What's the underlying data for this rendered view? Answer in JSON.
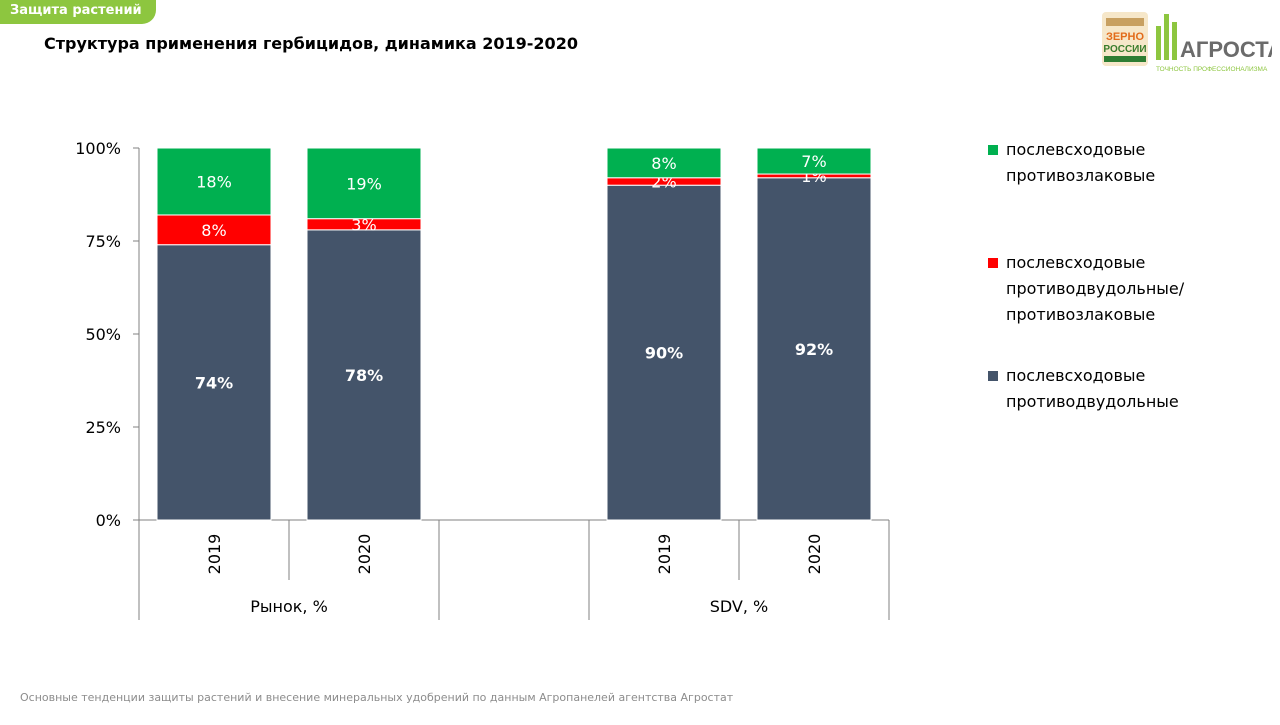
{
  "header": {
    "section_tag": "Защита растений",
    "title": "Структура применения гербицидов, динамика 2019-2020"
  },
  "logo": {
    "brand_left_line1": "ЗЕРНО",
    "brand_left_line2": "РОССИИ",
    "brand_name": "АГРОСТАТ",
    "slogan": "ТОЧНОСТЬ ПРОФЕССИОНАЛИЗМА"
  },
  "footer": {
    "text": "Основные тенденции защиты растений и внесение минеральных удобрений  по данным Агропанелей агентства Агростат"
  },
  "colors": {
    "dark": "#44546a",
    "red": "#ff0000",
    "green": "#00b050",
    "tag": "#8dc63f"
  },
  "chart_data": {
    "type": "bar",
    "stacked": true,
    "y_ticks": [
      "0%",
      "25%",
      "50%",
      "75%",
      "100%"
    ],
    "ylim": [
      0,
      100
    ],
    "groups": [
      {
        "label": "Рынок, %",
        "categories": [
          "2019",
          "2020"
        ]
      },
      {
        "label": "SDV, %",
        "categories": [
          "2019",
          "2020"
        ]
      }
    ],
    "series": [
      {
        "name": "послевсходовые противодвудольные",
        "color": "#44546a",
        "values": [
          74,
          78,
          90,
          92
        ],
        "labels": [
          "74%",
          "78%",
          "90%",
          "92%"
        ]
      },
      {
        "name": "послевсходовые противодвудольные/ противозлаковые",
        "color": "#ff0000",
        "values": [
          8,
          3,
          2,
          1
        ],
        "labels": [
          "8%",
          "3%",
          "2%",
          "1%"
        ]
      },
      {
        "name": "послевсходовые противозлаковые",
        "color": "#00b050",
        "values": [
          18,
          19,
          8,
          7
        ],
        "labels": [
          "18%",
          "19%",
          "8%",
          "7%"
        ]
      }
    ],
    "legend": [
      {
        "line1": "послевсходовые",
        "line2": "противозлаковые",
        "line3": "",
        "color": "#00b050"
      },
      {
        "line1": "послевсходовые",
        "line2": "противодвудольные/",
        "line3": "противозлаковые",
        "color": "#ff0000"
      },
      {
        "line1": "послевсходовые",
        "line2": "противодвудольные",
        "line3": "",
        "color": "#44546a"
      }
    ],
    "legend_position": "right",
    "grid": false
  }
}
